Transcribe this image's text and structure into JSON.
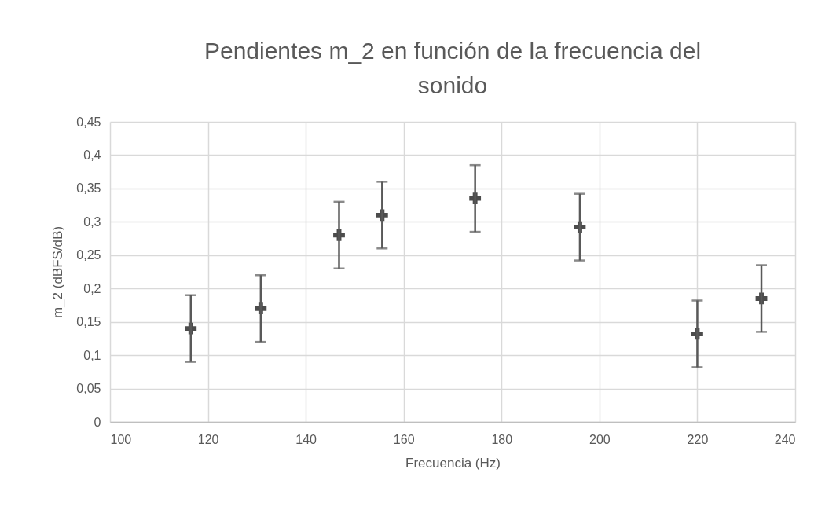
{
  "chart_data": {
    "type": "scatter",
    "title": "Pendientes m_2 en función de la frecuencia del sonido",
    "xlabel": "Frecuencia (Hz)",
    "ylabel": "m_2 (dBFS/dB)",
    "x": [
      116.5,
      130.8,
      146.8,
      155.6,
      174.6,
      196,
      220,
      233.1
    ],
    "series": [
      {
        "color": "#000000",
        "values": [
          0.14,
          0.17,
          0.28,
          0.31,
          0.335,
          0.292,
          0.132,
          0.185
        ],
        "errors": [
          0.05,
          0.05,
          0.05,
          0.05,
          0.05,
          0.05,
          0.05,
          0.05
        ]
      }
    ],
    "xlim": [
      100,
      240
    ],
    "xticks": [
      100,
      120,
      140,
      160,
      180,
      200,
      220,
      240
    ],
    "ylim": [
      0,
      0.45
    ],
    "yticks": [
      0,
      {
        "value": 0.05,
        "label": "0,05"
      },
      {
        "value": 0.1,
        "label": "0,1"
      },
      {
        "value": 0.15,
        "label": "0,15"
      },
      {
        "value": 0.2,
        "label": "0,2"
      },
      {
        "value": 0.25,
        "label": "0,25"
      },
      {
        "value": 0.3,
        "label": "0,3"
      },
      {
        "value": 0.35,
        "label": "0,35"
      },
      {
        "value": 0.4,
        "label": "0,4"
      },
      {
        "value": 0.45,
        "label": "0,45"
      }
    ],
    "grid": true,
    "marker": "cross"
  }
}
